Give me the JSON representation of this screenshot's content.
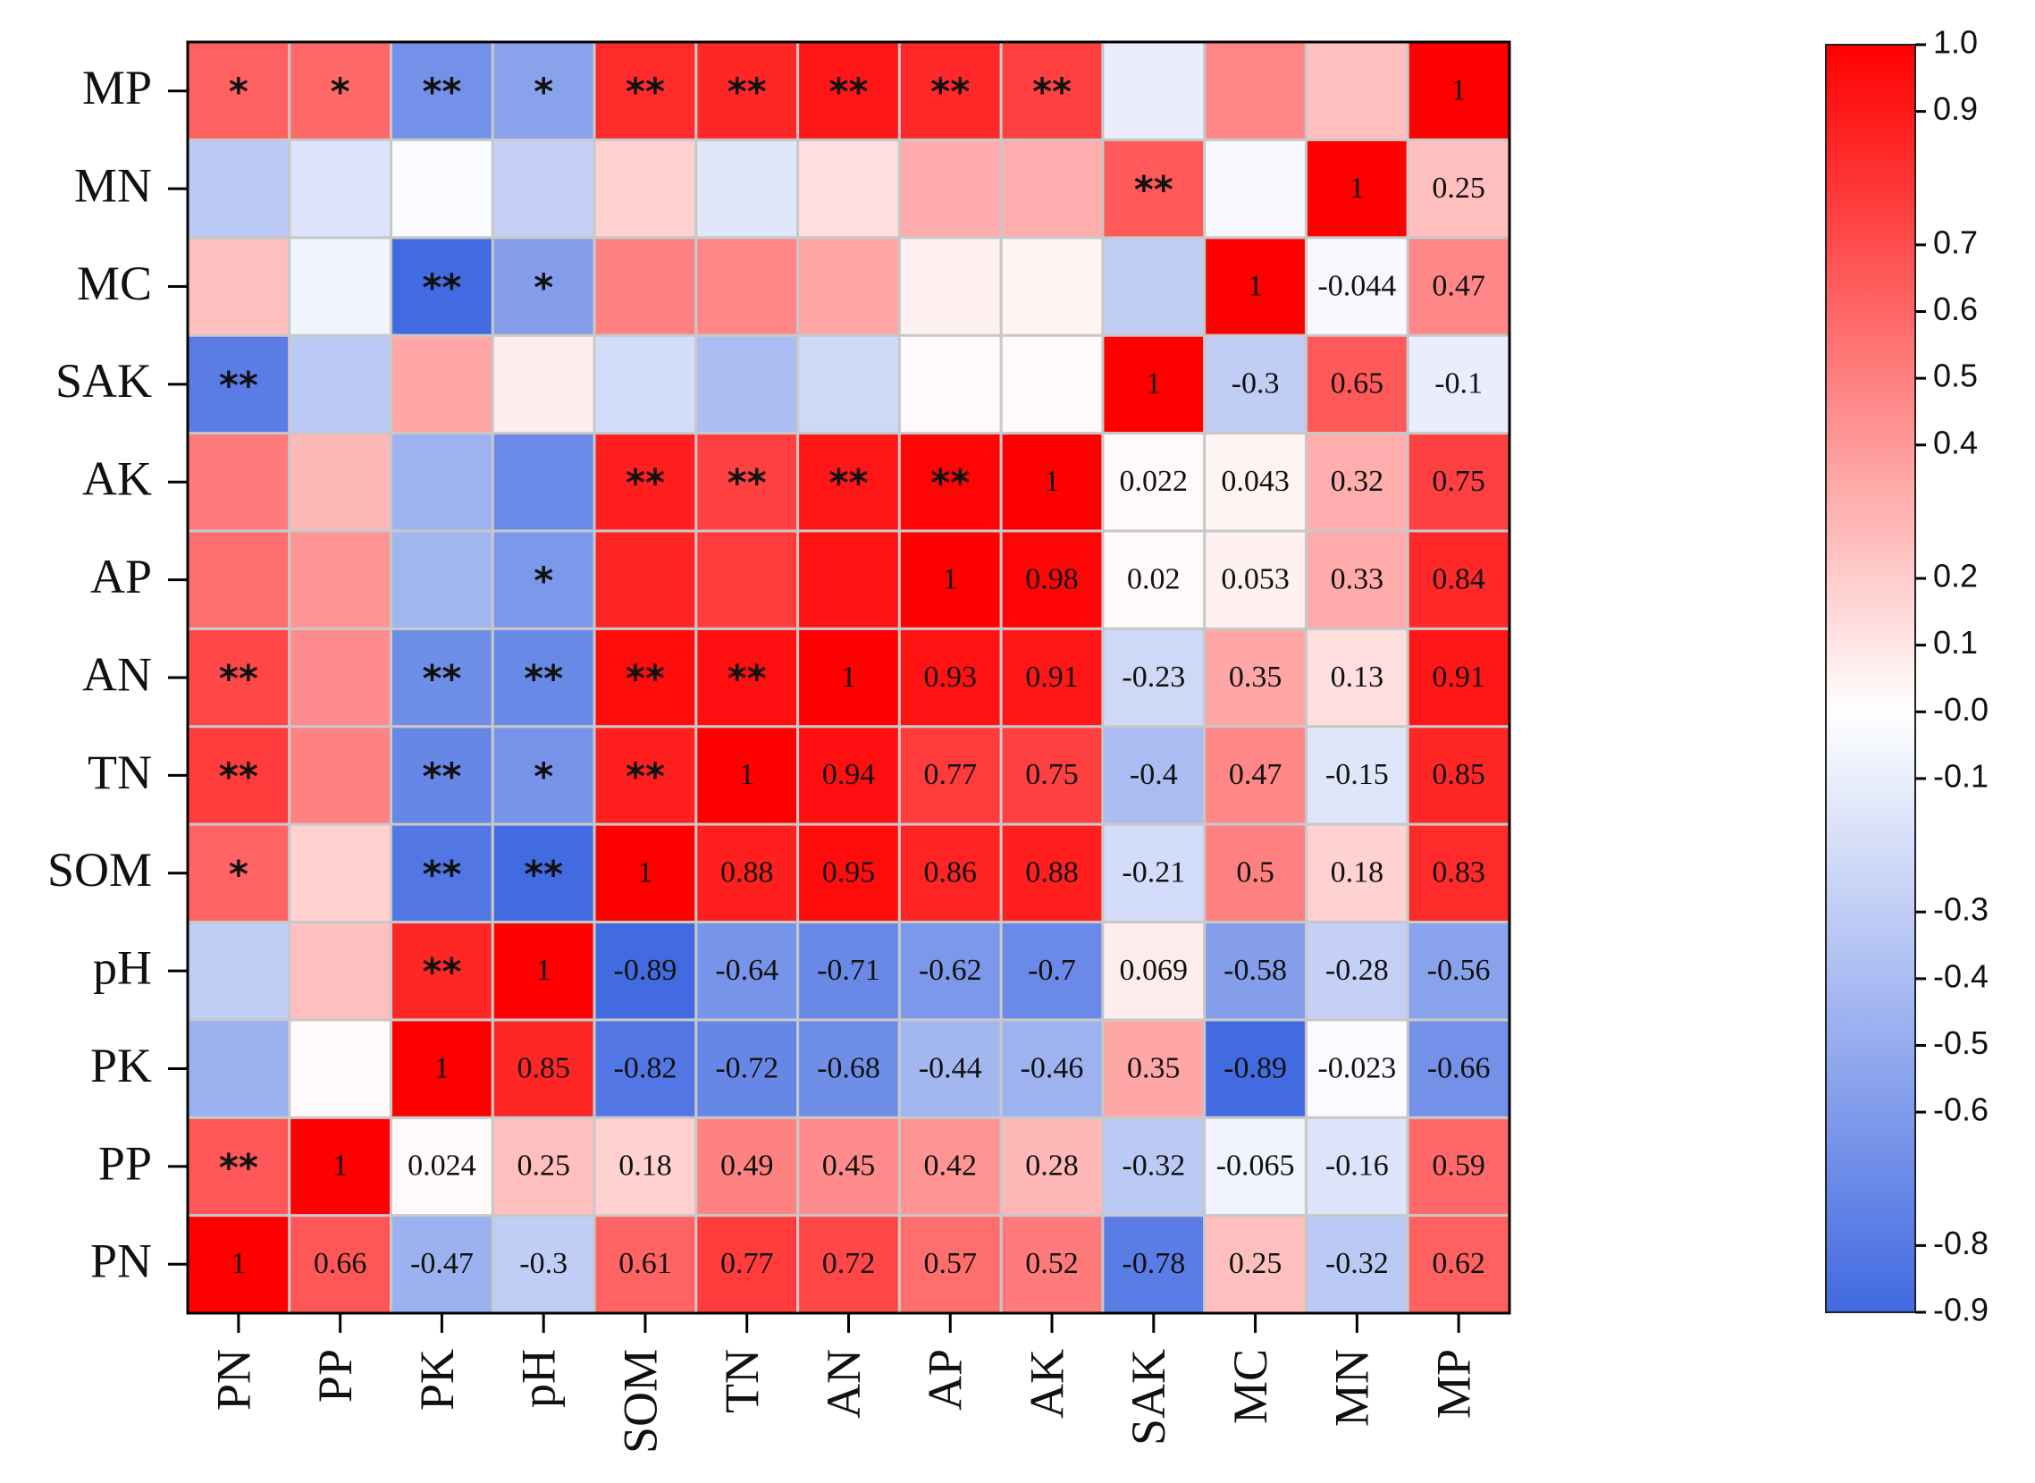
{
  "chart_data": {
    "type": "heatmap",
    "title": "",
    "variables": [
      "PN",
      "PP",
      "PK",
      "pH",
      "SOM",
      "TN",
      "AN",
      "AP",
      "AK",
      "SAK",
      "MC",
      "MN",
      "MP"
    ],
    "x_labels": [
      "PN",
      "PP",
      "PK",
      "pH",
      "SOM",
      "TN",
      "AN",
      "AP",
      "AK",
      "SAK",
      "MC",
      "MN",
      "MP"
    ],
    "y_labels_bottom_to_top": [
      "PN",
      "PP",
      "PK",
      "pH",
      "SOM",
      "TN",
      "AN",
      "AP",
      "AK",
      "SAK",
      "MC",
      "MN",
      "MP"
    ],
    "cells": [
      {
        "row": "PN",
        "values": [
          1,
          0.66,
          -0.47,
          -0.3,
          0.61,
          0.77,
          0.72,
          0.57,
          0.52,
          -0.78,
          0.25,
          -0.32,
          0.62
        ],
        "labels": [
          "1",
          "0.66",
          "-0.47",
          "-0.3",
          "0.61",
          "0.77",
          "0.72",
          "0.57",
          "0.52",
          "-0.78",
          "0.25",
          "-0.32",
          "0.62"
        ]
      },
      {
        "row": "PP",
        "values": [
          0.66,
          1,
          0.024,
          0.25,
          0.18,
          0.49,
          0.45,
          0.42,
          0.28,
          -0.32,
          -0.065,
          -0.16,
          0.59
        ],
        "labels": [
          "**",
          "1",
          "0.024",
          "0.25",
          "0.18",
          "0.49",
          "0.45",
          "0.42",
          "0.28",
          "-0.32",
          "-0.065",
          "-0.16",
          "0.59"
        ]
      },
      {
        "row": "PK",
        "values": [
          -0.47,
          0.024,
          1,
          0.85,
          -0.82,
          -0.72,
          -0.68,
          -0.44,
          -0.46,
          0.35,
          -0.89,
          -0.023,
          -0.66
        ],
        "labels": [
          "",
          "",
          "1",
          "0.85",
          "-0.82",
          "-0.72",
          "-0.68",
          "-0.44",
          "-0.46",
          "0.35",
          "-0.89",
          "-0.023",
          "-0.66"
        ]
      },
      {
        "row": "pH",
        "values": [
          -0.3,
          0.25,
          0.85,
          1,
          -0.89,
          -0.64,
          -0.71,
          -0.62,
          -0.7,
          0.069,
          -0.58,
          -0.28,
          -0.56
        ],
        "labels": [
          "",
          "",
          "**",
          "1",
          "-0.89",
          "-0.64",
          "-0.71",
          "-0.62",
          "-0.7",
          "0.069",
          "-0.58",
          "-0.28",
          "-0.56"
        ]
      },
      {
        "row": "SOM",
        "values": [
          0.61,
          0.18,
          -0.82,
          -0.89,
          1,
          0.88,
          0.95,
          0.86,
          0.88,
          -0.21,
          0.5,
          0.18,
          0.83
        ],
        "labels": [
          "*",
          "",
          "**",
          "**",
          "1",
          "0.88",
          "0.95",
          "0.86",
          "0.88",
          "-0.21",
          "0.5",
          "0.18",
          "0.83"
        ]
      },
      {
        "row": "TN",
        "values": [
          0.77,
          0.49,
          -0.72,
          -0.64,
          0.88,
          1,
          0.94,
          0.77,
          0.75,
          -0.4,
          0.47,
          -0.15,
          0.85
        ],
        "labels": [
          "**",
          "",
          "**",
          "*",
          "**",
          "1",
          "0.94",
          "0.77",
          "0.75",
          "-0.4",
          "0.47",
          "-0.15",
          "0.85"
        ]
      },
      {
        "row": "AN",
        "values": [
          0.72,
          0.45,
          -0.68,
          -0.71,
          0.95,
          0.94,
          1,
          0.93,
          0.91,
          -0.23,
          0.35,
          0.13,
          0.91
        ],
        "labels": [
          "**",
          "",
          "**",
          "**",
          "**",
          "**",
          "1",
          "0.93",
          "0.91",
          "-0.23",
          "0.35",
          "0.13",
          "0.91"
        ]
      },
      {
        "row": "AP",
        "values": [
          0.57,
          0.42,
          -0.44,
          -0.62,
          0.86,
          0.77,
          0.93,
          1,
          0.98,
          0.02,
          0.053,
          0.33,
          0.84
        ],
        "labels": [
          "",
          "",
          "",
          "*",
          "",
          "",
          "",
          "1",
          "0.98",
          "0.02",
          "0.053",
          "0.33",
          "0.84"
        ]
      },
      {
        "row": "AK",
        "values": [
          0.52,
          0.28,
          -0.46,
          -0.7,
          0.88,
          0.75,
          0.91,
          0.98,
          1,
          0.022,
          0.043,
          0.32,
          0.75
        ],
        "labels": [
          "",
          "",
          "",
          "",
          "**",
          "**",
          "**",
          "**",
          "1",
          "0.022",
          "0.043",
          "0.32",
          "0.75"
        ]
      },
      {
        "row": "SAK",
        "values": [
          -0.78,
          -0.32,
          0.35,
          0.069,
          -0.21,
          -0.4,
          -0.23,
          0.02,
          0.022,
          1,
          -0.3,
          0.65,
          -0.1
        ],
        "labels": [
          "**",
          "",
          "",
          "",
          "",
          "",
          "",
          "",
          "",
          "1",
          "-0.3",
          "0.65",
          "-0.1"
        ]
      },
      {
        "row": "MC",
        "values": [
          0.25,
          -0.065,
          -0.89,
          -0.58,
          0.5,
          0.47,
          0.35,
          0.053,
          0.043,
          -0.3,
          1,
          -0.044,
          0.47
        ],
        "labels": [
          "",
          "",
          "**",
          "*",
          "",
          "",
          "",
          "",
          "",
          "",
          "1",
          "-0.044",
          "0.47"
        ]
      },
      {
        "row": "MN",
        "values": [
          -0.32,
          -0.16,
          -0.023,
          -0.28,
          0.18,
          -0.15,
          0.13,
          0.33,
          0.32,
          0.65,
          -0.044,
          1,
          0.25
        ],
        "labels": [
          "",
          "",
          "",
          "",
          "",
          "",
          "",
          "",
          "",
          "**",
          "",
          "1",
          "0.25"
        ]
      },
      {
        "row": "MP",
        "values": [
          0.62,
          0.59,
          -0.66,
          -0.56,
          0.83,
          0.85,
          0.91,
          0.84,
          0.75,
          -0.1,
          0.47,
          0.25,
          1
        ],
        "labels": [
          "*",
          "*",
          "**",
          "*",
          "**",
          "**",
          "**",
          "**",
          "**",
          "",
          "",
          "",
          "1"
        ]
      }
    ],
    "colorbar": {
      "range": [
        -0.9,
        1.0
      ],
      "tick_labels": [
        "1.0",
        "0.9",
        "0.7",
        "0.6",
        "0.5",
        "0.4",
        "0.2",
        "0.1",
        "-0.0",
        "-0.1",
        "-0.3",
        "-0.4",
        "-0.5",
        "-0.6",
        "-0.8",
        "-0.9"
      ],
      "tick_values": [
        1.0,
        0.9,
        0.7,
        0.6,
        0.5,
        0.4,
        0.2,
        0.1,
        0.0,
        -0.1,
        -0.3,
        -0.4,
        -0.5,
        -0.6,
        -0.8,
        -0.9
      ],
      "colors": {
        "high": "#ff0000",
        "mid": "#ffffff",
        "low": "#4169e1"
      }
    },
    "significance_legend": {
      "single_star": "*",
      "double_star": "**"
    }
  }
}
